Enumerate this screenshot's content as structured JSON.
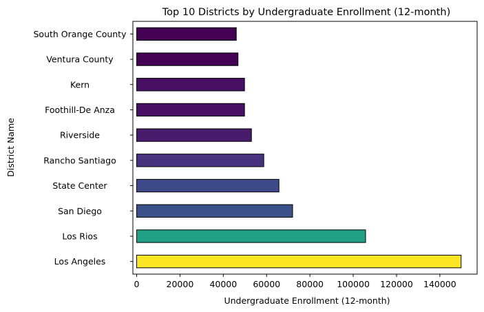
{
  "chart_data": {
    "type": "bar",
    "orientation": "horizontal",
    "title": "Top 10 Districts by Undergraduate Enrollment (12-month)",
    "xlabel": "Undergraduate Enrollment (12-month)",
    "ylabel": "District Name",
    "xlim": [
      0,
      159000
    ],
    "xticks": [
      0,
      20000,
      40000,
      60000,
      80000,
      100000,
      120000,
      140000
    ],
    "xtick_labels": [
      "0",
      "20000",
      "40000",
      "60000",
      "80000",
      "100000",
      "120000",
      "140000"
    ],
    "grid": false,
    "categories": [
      "South Orange County",
      "Ventura County",
      "Kern",
      "Foothill-De Anza",
      "Riverside",
      "Rancho Santiago",
      "State Center",
      "San Diego",
      "Los Rios",
      "Los Angeles"
    ],
    "values": [
      46000,
      46800,
      49800,
      49800,
      53000,
      58700,
      65700,
      72000,
      105700,
      149800
    ],
    "colors": [
      "#440154",
      "#440154",
      "#470f62",
      "#470f62",
      "#481b6d",
      "#46327e",
      "#3e4a89",
      "#3b528b",
      "#21a085",
      "#fde725"
    ],
    "edge_color": "#000000"
  }
}
